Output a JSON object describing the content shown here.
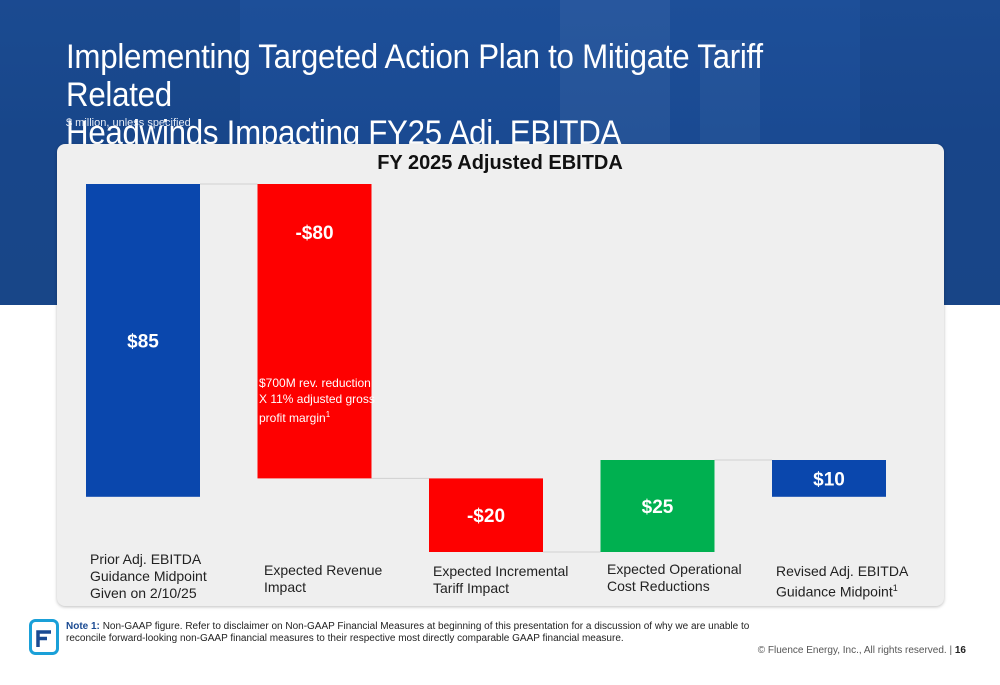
{
  "slide": {
    "title_line1": "Implementing Targeted Action Plan to Mitigate Tariff Related",
    "title_line2": "Headwinds Impacting FY25 Adj. EBITDA",
    "subtitle": "$ million, unless specified"
  },
  "chart_data": {
    "type": "bar",
    "subtype": "waterfall",
    "title": "FY 2025 Adjusted EBITDA",
    "categories": [
      "Prior Adj. EBITDA Guidance Midpoint Given on 2/10/25",
      "Expected Revenue Impact",
      "Expected Incremental Tariff Impact",
      "Expected Operational Cost Reductions",
      "Revised Adj. EBITDA Guidance Midpoint"
    ],
    "category_label_lines": [
      [
        "Prior Adj. EBITDA",
        "Guidance Midpoint",
        "Given on 2/10/25"
      ],
      [
        "Expected Revenue",
        "Impact"
      ],
      [
        "Expected Incremental",
        "Tariff Impact"
      ],
      [
        "Expected Operational",
        "Cost Reductions"
      ],
      [
        "Revised Adj. EBITDA",
        "Guidance Midpoint"
      ]
    ],
    "category_superscripts": [
      "",
      "",
      "",
      "",
      "1"
    ],
    "values": [
      85,
      -80,
      -20,
      25,
      10
    ],
    "bar_kinds": [
      "total",
      "delta",
      "delta",
      "delta",
      "total"
    ],
    "data_labels": [
      "$85",
      "-$80",
      "-$20",
      "$25",
      "$10"
    ],
    "colors": [
      "#0a47ad",
      "#fe0000",
      "#fe0000",
      "#00b050",
      "#0a47ad"
    ],
    "annotation": {
      "lines": [
        "$700M rev. reduction",
        "X 11% adjusted  gross",
        "profit margin"
      ],
      "superscript": "1"
    },
    "xlabel": "",
    "ylabel": "",
    "ylim": [
      -15,
      85
    ],
    "grid": false,
    "legend": "none"
  },
  "footer": {
    "note_label": "Note 1:",
    "note_text": "Non-GAAP figure.  Refer to disclaimer on Non-GAAP Financial Measures at beginning of this presentation for a discussion of why we are unable to reconcile forward-looking non-GAAP financial measures to their respective most directly comparable GAAP financial measure.",
    "copyright": "© Fluence Energy, Inc., All rights reserved.",
    "separator": "|",
    "page_number": "16"
  },
  "colors": {
    "brand_blue": "#1a4a92",
    "panel_bg": "#efefef"
  },
  "icons": {
    "logo": "fluence-logo-icon"
  }
}
